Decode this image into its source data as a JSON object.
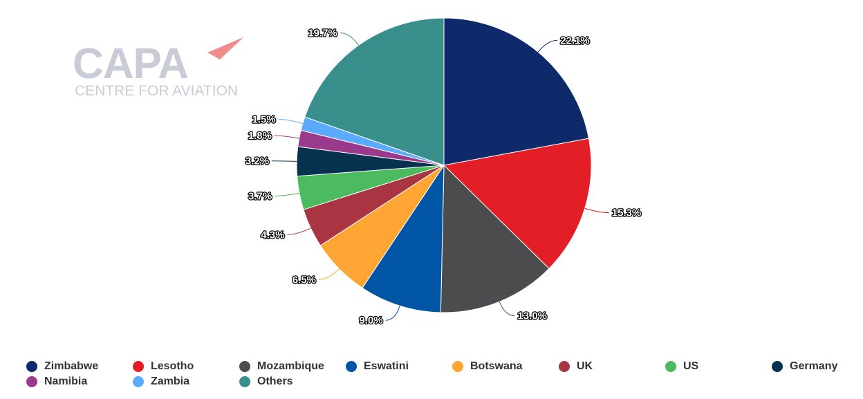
{
  "watermark": {
    "brand": "CAPA",
    "subtitle": "CENTRE FOR AVIATION",
    "accent": "#f28b8b"
  },
  "chart_data": {
    "type": "pie",
    "title": "",
    "value_format": "percent_one_decimal",
    "legend_position": "bottom",
    "slices": [
      {
        "name": "Zimbabwe",
        "value": 22.1,
        "label": "22.1%",
        "color": "#0f2a6b"
      },
      {
        "name": "Lesotho",
        "value": 15.3,
        "label": "15.3%",
        "color": "#e41e26"
      },
      {
        "name": "Mozambique",
        "value": 13.0,
        "label": "13.0%",
        "color": "#4c4c4e"
      },
      {
        "name": "Eswatini",
        "value": 9.0,
        "label": "9.0%",
        "color": "#0055a4"
      },
      {
        "name": "Botswana",
        "value": 6.5,
        "label": "6.5%",
        "color": "#ffa534"
      },
      {
        "name": "UK",
        "value": 4.3,
        "label": "4.3%",
        "color": "#a93442"
      },
      {
        "name": "US",
        "value": 3.7,
        "label": "3.7%",
        "color": "#4cba5e"
      },
      {
        "name": "Germany",
        "value": 3.2,
        "label": "3.2%",
        "color": "#06314f"
      },
      {
        "name": "Namibia",
        "value": 1.8,
        "label": "1.8%",
        "color": "#9a3a8c"
      },
      {
        "name": "Zambia",
        "value": 1.5,
        "label": "1.5%",
        "color": "#5aabff"
      },
      {
        "name": "Others",
        "value": 19.7,
        "label": "19.7%",
        "color": "#388f8b"
      }
    ]
  }
}
